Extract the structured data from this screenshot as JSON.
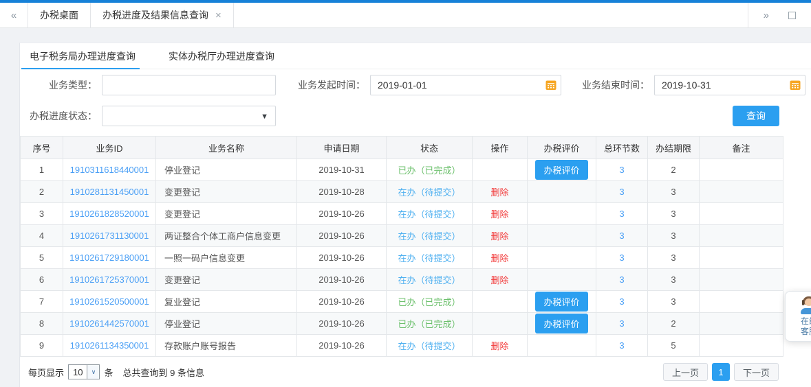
{
  "titlebar": {
    "collapse_icon": "«",
    "expand_icon": "»",
    "tabs": [
      {
        "label": "办税桌面"
      },
      {
        "label": "办税进度及结果信息查询",
        "close_icon": "×"
      }
    ]
  },
  "subtabs": [
    {
      "label": "电子税务局办理进度查询",
      "active": true
    },
    {
      "label": "实体办税厅办理进度查询",
      "active": false
    }
  ],
  "filters": {
    "business_type": {
      "label": "业务类型：",
      "value": ""
    },
    "start_time": {
      "label": "业务发起时间：",
      "value": "2019-01-01"
    },
    "end_time": {
      "label": "业务结束时间：",
      "value": "2019-10-31"
    },
    "progress_status": {
      "label": "办税进度状态：",
      "value": ""
    },
    "query_button": "查询"
  },
  "table": {
    "headers": [
      "序号",
      "业务ID",
      "业务名称",
      "申请日期",
      "状态",
      "操作",
      "办税评价",
      "总环节数",
      "办结期限",
      "备注"
    ],
    "rows": [
      {
        "seq": "1",
        "id": "1910311618440001",
        "name": "停业登记",
        "date": "2019-10-31",
        "status": "已办（已完成）",
        "status_type": "done",
        "action": "",
        "evaluate": "办税评价",
        "steps": "3",
        "deadline": "2",
        "remark": ""
      },
      {
        "seq": "2",
        "id": "1910281131450001",
        "name": "变更登记",
        "date": "2019-10-28",
        "status": "在办（待提交）",
        "status_type": "doing",
        "action": "删除",
        "evaluate": "",
        "steps": "3",
        "deadline": "3",
        "remark": ""
      },
      {
        "seq": "3",
        "id": "1910261828520001",
        "name": "变更登记",
        "date": "2019-10-26",
        "status": "在办（待提交）",
        "status_type": "doing",
        "action": "删除",
        "evaluate": "",
        "steps": "3",
        "deadline": "3",
        "remark": ""
      },
      {
        "seq": "4",
        "id": "1910261731130001",
        "name": "两证整合个体工商户信息变更",
        "date": "2019-10-26",
        "status": "在办（待提交）",
        "status_type": "doing",
        "action": "删除",
        "evaluate": "",
        "steps": "3",
        "deadline": "3",
        "remark": ""
      },
      {
        "seq": "5",
        "id": "1910261729180001",
        "name": "一照一码户信息变更",
        "date": "2019-10-26",
        "status": "在办（待提交）",
        "status_type": "doing",
        "action": "删除",
        "evaluate": "",
        "steps": "3",
        "deadline": "3",
        "remark": ""
      },
      {
        "seq": "6",
        "id": "1910261725370001",
        "name": "变更登记",
        "date": "2019-10-26",
        "status": "在办（待提交）",
        "status_type": "doing",
        "action": "删除",
        "evaluate": "",
        "steps": "3",
        "deadline": "3",
        "remark": ""
      },
      {
        "seq": "7",
        "id": "1910261520500001",
        "name": "复业登记",
        "date": "2019-10-26",
        "status": "已办（已完成）",
        "status_type": "done",
        "action": "",
        "evaluate": "办税评价",
        "steps": "3",
        "deadline": "3",
        "remark": ""
      },
      {
        "seq": "8",
        "id": "1910261442570001",
        "name": "停业登记",
        "date": "2019-10-26",
        "status": "已办（已完成）",
        "status_type": "done",
        "action": "",
        "evaluate": "办税评价",
        "steps": "3",
        "deadline": "2",
        "remark": ""
      },
      {
        "seq": "9",
        "id": "1910261134350001",
        "name": "存款账户账号报告",
        "date": "2019-10-26",
        "status": "在办（待提交）",
        "status_type": "doing",
        "action": "删除",
        "evaluate": "",
        "steps": "3",
        "deadline": "5",
        "remark": ""
      }
    ]
  },
  "pagination": {
    "per_page_prefix": "每页显示",
    "per_page_value": "10",
    "per_page_suffix": "条",
    "total_text": "总共查询到 9 条信息",
    "prev": "上一页",
    "current": "1",
    "next": "下一页"
  },
  "service_widget": {
    "line1": "在线",
    "line2": "客服"
  },
  "colors": {
    "top_bar_blue": "#1681d8",
    "accent_blue": "#2b9ff0",
    "link_blue": "#4a9ff5",
    "status_done_green": "#6cc06c",
    "status_doing_blue": "#4fb0f0",
    "delete_red": "#f23c3c",
    "calendar_orange": "#f6a623"
  }
}
